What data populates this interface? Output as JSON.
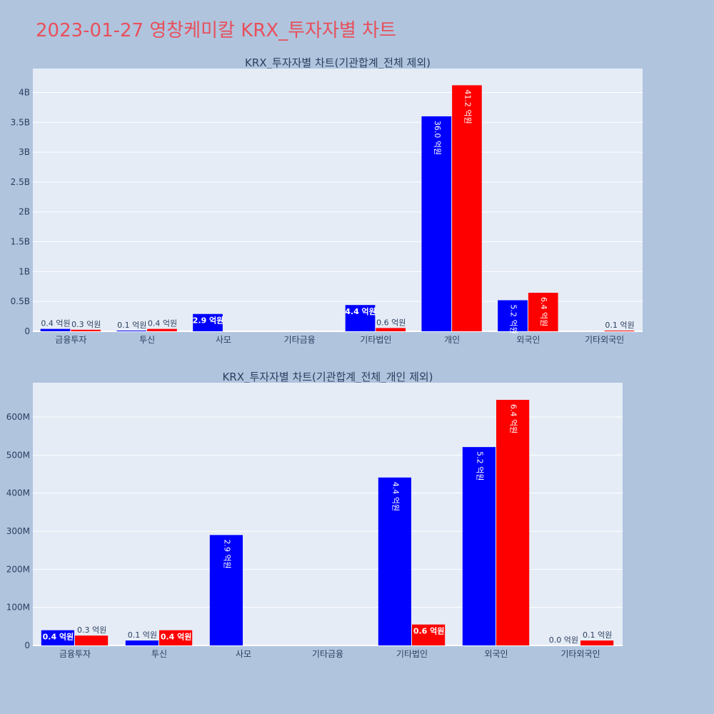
{
  "page": {
    "title": "2023-01-27 영창케미칼 KRX_투자자별 차트"
  },
  "colors": {
    "sell": "#0000ff",
    "buy": "#ff0000",
    "title": "#e8505b",
    "plot_bg": "#e5ecf6",
    "page_bg": "#b0c4de"
  },
  "chart_data": [
    {
      "type": "bar",
      "title": "KRX_투자자별 차트(기관합계_전체 제외)",
      "categories": [
        "금융투자",
        "투신",
        "사모",
        "기타금융",
        "기타법인",
        "개인",
        "외국인",
        "기타외국인"
      ],
      "series": [
        {
          "color": "#0000ff",
          "values": [
            40000000,
            12000000,
            290000000,
            null,
            440000000,
            3600000000,
            520000000,
            null
          ],
          "labels": [
            "0.4 억원",
            "0.1 억원",
            "2.9 억원",
            null,
            "4.4 억원",
            "36.0 억원",
            "5.2 억원",
            null
          ],
          "label_rot": [
            0,
            0,
            0,
            0,
            0,
            90,
            90,
            0
          ]
        },
        {
          "color": "#ff0000",
          "values": [
            26000000,
            40000000,
            null,
            null,
            55000000,
            4120000000,
            645000000,
            12000000
          ],
          "labels": [
            "0.3 억원",
            "0.4 억원",
            null,
            null,
            "0.6 억원",
            "41.2 억원",
            "6.4 억원",
            "0.1 억원"
          ],
          "label_rot": [
            0,
            0,
            0,
            0,
            0,
            90,
            90,
            0
          ]
        }
      ],
      "yticks": [
        {
          "v": 0,
          "t": "0"
        },
        {
          "v": 500000000,
          "t": "0.5B"
        },
        {
          "v": 1000000000,
          "t": "1B"
        },
        {
          "v": 1500000000,
          "t": "1.5B"
        },
        {
          "v": 2000000000,
          "t": "2B"
        },
        {
          "v": 2500000000,
          "t": "2.5B"
        },
        {
          "v": 3000000000,
          "t": "3B"
        },
        {
          "v": 3500000000,
          "t": "3.5B"
        },
        {
          "v": 4000000000,
          "t": "4B"
        }
      ],
      "ylim": [
        0,
        4400000000
      ],
      "grid": true
    },
    {
      "type": "bar",
      "title": "KRX_투자자별 차트(기관합계_전체_개인 제외)",
      "categories": [
        "금융투자",
        "투신",
        "사모",
        "기타금융",
        "기타법인",
        "외국인",
        "기타외국인"
      ],
      "series": [
        {
          "color": "#0000ff",
          "values": [
            40000000,
            13000000,
            290000000,
            null,
            441000000,
            521000000,
            0
          ],
          "labels": [
            "0.4 억원",
            "0.1 억원",
            "2.9 억원",
            null,
            "4.4 억원",
            "5.2 억원",
            "0.0 억원"
          ],
          "label_rot": [
            0,
            0,
            90,
            0,
            90,
            90,
            0
          ]
        },
        {
          "color": "#ff0000",
          "values": [
            26000000,
            40000000,
            null,
            null,
            55000000,
            645000000,
            13000000
          ],
          "labels": [
            "0.3 억원",
            "0.4 억원",
            null,
            null,
            "0.6 억원",
            "6.4 억원",
            "0.1 억원"
          ],
          "label_rot": [
            0,
            0,
            0,
            0,
            0,
            90,
            0
          ]
        }
      ],
      "yticks": [
        {
          "v": 0,
          "t": "0"
        },
        {
          "v": 100000000,
          "t": "100M"
        },
        {
          "v": 200000000,
          "t": "200M"
        },
        {
          "v": 300000000,
          "t": "300M"
        },
        {
          "v": 400000000,
          "t": "400M"
        },
        {
          "v": 500000000,
          "t": "500M"
        },
        {
          "v": 600000000,
          "t": "600M"
        }
      ],
      "ylim": [
        0,
        690000000
      ],
      "grid": true
    }
  ]
}
